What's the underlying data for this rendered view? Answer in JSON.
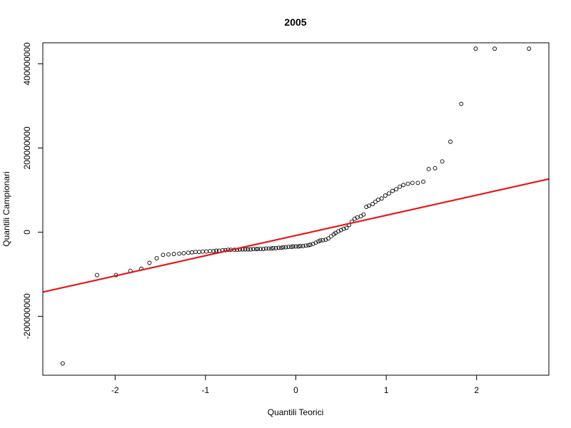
{
  "chart_data": {
    "type": "scatter",
    "title": "2005",
    "xlabel": "Quantili Teorici",
    "ylabel": "Quantili Campionari",
    "xlim": [
      -2.8,
      2.8
    ],
    "ylim": [
      -340000000,
      450000000
    ],
    "xticks": [
      -2,
      -1,
      0,
      1,
      2
    ],
    "xtick_labels": [
      "-2",
      "-1",
      "0",
      "1",
      "2"
    ],
    "yticks": [
      -200000000,
      0,
      200000000,
      400000000
    ],
    "ytick_labels": [
      "-200000000",
      "0",
      "200000000",
      "400000000"
    ],
    "grid": false,
    "legend": "none",
    "colors": {
      "points": "#000000",
      "reference_line": "#e41a1c",
      "frame": "#000000"
    },
    "reference_line": {
      "intercept": -8000000,
      "slope": 48000000
    },
    "points": {
      "x": [
        -2.58,
        -2.2,
        -1.99,
        -1.83,
        -1.71,
        -1.62,
        -1.54,
        -1.47,
        -1.41,
        -1.35,
        -1.29,
        -1.24,
        -1.19,
        -1.15,
        -1.11,
        -1.07,
        -1.03,
        -0.99,
        -0.95,
        -0.91,
        -0.88,
        -0.85,
        -0.81,
        -0.78,
        -0.75,
        -0.72,
        -0.68,
        -0.65,
        -0.62,
        -0.59,
        -0.56,
        -0.53,
        -0.5,
        -0.47,
        -0.44,
        -0.42,
        -0.39,
        -0.36,
        -0.33,
        -0.3,
        -0.27,
        -0.25,
        -0.22,
        -0.19,
        -0.16,
        -0.14,
        -0.11,
        -0.08,
        -0.05,
        -0.03,
        0.0,
        0.03,
        0.05,
        0.08,
        0.11,
        0.14,
        0.16,
        0.19,
        0.22,
        0.25,
        0.27,
        0.3,
        0.33,
        0.36,
        0.39,
        0.42,
        0.44,
        0.47,
        0.5,
        0.53,
        0.56,
        0.59,
        0.62,
        0.65,
        0.68,
        0.72,
        0.75,
        0.78,
        0.81,
        0.85,
        0.88,
        0.91,
        0.95,
        0.99,
        1.03,
        1.07,
        1.11,
        1.15,
        1.19,
        1.24,
        1.29,
        1.35,
        1.41,
        1.47,
        1.54,
        1.62,
        1.71,
        1.83,
        1.99,
        2.2,
        2.58
      ],
      "y": [
        -312000000,
        -102000000,
        -102000000,
        -92000000,
        -87000000,
        -73000000,
        -62000000,
        -54000000,
        -53000000,
        -52000000,
        -51000000,
        -50000000,
        -49000000,
        -48000000,
        -47000000,
        -47000000,
        -46000000,
        -46000000,
        -45000000,
        -45000000,
        -44000000,
        -44000000,
        -43000000,
        -43000000,
        -42000000,
        -42000000,
        -42000000,
        -42000000,
        -41000000,
        -41000000,
        -41000000,
        -41000000,
        -41000000,
        -40000000,
        -40000000,
        -40000000,
        -40000000,
        -40000000,
        -39000000,
        -39000000,
        -39000000,
        -38000000,
        -38000000,
        -37000000,
        -37000000,
        -36000000,
        -36000000,
        -35000000,
        -35000000,
        -34000000,
        -34000000,
        -34000000,
        -33000000,
        -33000000,
        -32000000,
        -31000000,
        -30000000,
        -28000000,
        -25000000,
        -22000000,
        -20000000,
        -19000000,
        -18000000,
        -15000000,
        -10000000,
        -5000000,
        -2000000,
        2000000,
        5000000,
        8000000,
        10000000,
        17000000,
        25000000,
        32000000,
        35000000,
        38000000,
        42000000,
        60000000,
        63000000,
        67000000,
        72000000,
        77000000,
        80000000,
        87000000,
        92000000,
        98000000,
        102000000,
        108000000,
        112000000,
        115000000,
        117000000,
        117000000,
        120000000,
        150000000,
        152000000,
        168000000,
        215000000,
        305000000,
        436000000,
        436000000,
        436000000
      ]
    }
  }
}
